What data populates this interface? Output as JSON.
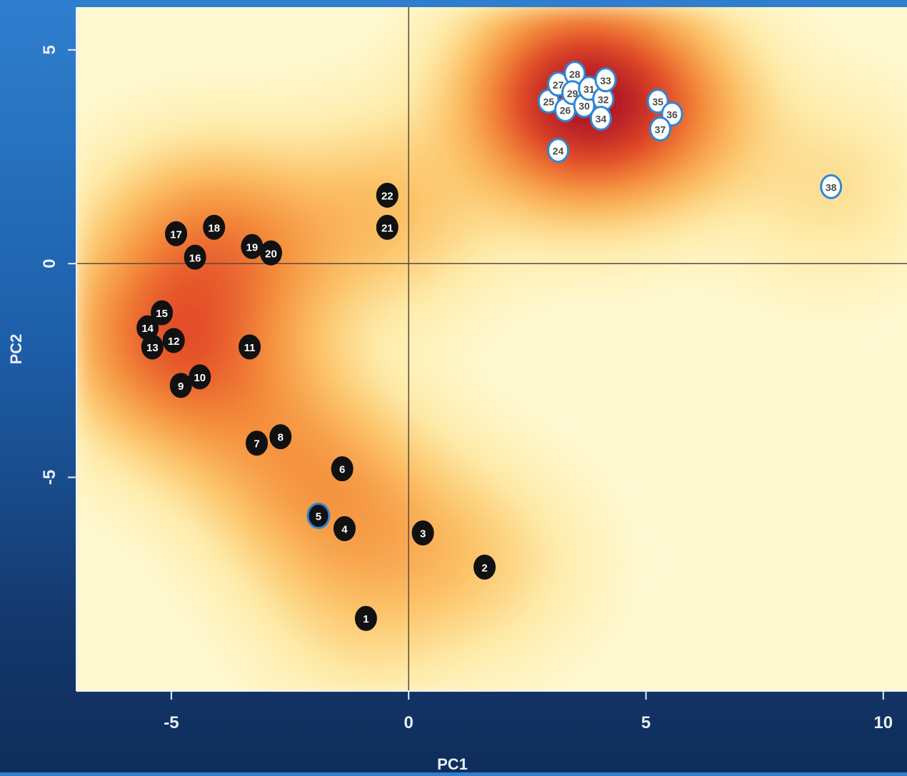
{
  "chart_data": {
    "type": "scatter",
    "xlabel": "PC1",
    "ylabel": "PC2",
    "xlim": [
      -7,
      10.5
    ],
    "ylim": [
      -10,
      6
    ],
    "xticks": [
      -5,
      0,
      5,
      10
    ],
    "yticks": [
      -5,
      0,
      5
    ],
    "xtick_labels": [
      "-5",
      "0",
      "5",
      "10"
    ],
    "ytick_labels": [
      "-5",
      "0",
      "5"
    ],
    "reference_lines": {
      "x": 0,
      "y": 0
    },
    "background": "2D density heatmap (yellow low to dark red high)",
    "colors": {
      "density_low": "#fff9d2",
      "density_mid": "#f39a3a",
      "density_high": "#b51d22",
      "group_a_fill": "#111111",
      "group_b_fill": "#ffffff",
      "group_b_outline": "#2f86d6",
      "highlight_outline": "#2f86d6"
    },
    "series": [
      {
        "points": [
          {
            "label": "1",
            "x": -0.9,
            "y": -8.3
          },
          {
            "label": "2",
            "x": 1.6,
            "y": -7.1
          },
          {
            "label": "3",
            "x": 0.3,
            "y": -6.3
          },
          {
            "label": "4",
            "x": -1.35,
            "y": -6.2
          },
          {
            "label": "5",
            "x": -1.9,
            "y": -5.9,
            "highlight": true
          },
          {
            "label": "6",
            "x": -1.4,
            "y": -4.8
          },
          {
            "label": "7",
            "x": -3.2,
            "y": -4.2
          },
          {
            "label": "8",
            "x": -2.7,
            "y": -4.05
          },
          {
            "label": "9",
            "x": -4.8,
            "y": -2.85
          },
          {
            "label": "10",
            "x": -4.4,
            "y": -2.65
          },
          {
            "label": "11",
            "x": -3.35,
            "y": -1.95
          },
          {
            "label": "12",
            "x": -4.95,
            "y": -1.8
          },
          {
            "label": "13",
            "x": -5.4,
            "y": -1.95
          },
          {
            "label": "14",
            "x": -5.5,
            "y": -1.5
          },
          {
            "label": "15",
            "x": -5.2,
            "y": -1.15
          },
          {
            "label": "16",
            "x": -4.5,
            "y": 0.15
          },
          {
            "label": "17",
            "x": -4.9,
            "y": 0.7
          },
          {
            "label": "18",
            "x": -4.1,
            "y": 0.85
          },
          {
            "label": "19",
            "x": -3.3,
            "y": 0.4
          },
          {
            "label": "20",
            "x": -2.9,
            "y": 0.25
          },
          {
            "label": "21",
            "x": -0.45,
            "y": 0.85
          },
          {
            "label": "22",
            "x": -0.45,
            "y": 1.6
          }
        ]
      },
      {
        "points": [
          {
            "label": "24",
            "x": 3.15,
            "y": 2.65
          },
          {
            "label": "25",
            "x": 2.95,
            "y": 3.8
          },
          {
            "label": "26",
            "x": 3.3,
            "y": 3.6
          },
          {
            "label": "27",
            "x": 3.15,
            "y": 4.2
          },
          {
            "label": "28",
            "x": 3.5,
            "y": 4.45
          },
          {
            "label": "29",
            "x": 3.45,
            "y": 4.0
          },
          {
            "label": "30",
            "x": 3.7,
            "y": 3.7
          },
          {
            "label": "31",
            "x": 3.8,
            "y": 4.1
          },
          {
            "label": "32",
            "x": 4.1,
            "y": 3.85
          },
          {
            "label": "33",
            "x": 4.15,
            "y": 4.3
          },
          {
            "label": "34",
            "x": 4.05,
            "y": 3.4
          },
          {
            "label": "35",
            "x": 5.25,
            "y": 3.8
          },
          {
            "label": "36",
            "x": 5.55,
            "y": 3.5
          },
          {
            "label": "37",
            "x": 5.3,
            "y": 3.15
          },
          {
            "label": "38",
            "x": 8.9,
            "y": 1.8
          }
        ]
      }
    ]
  }
}
